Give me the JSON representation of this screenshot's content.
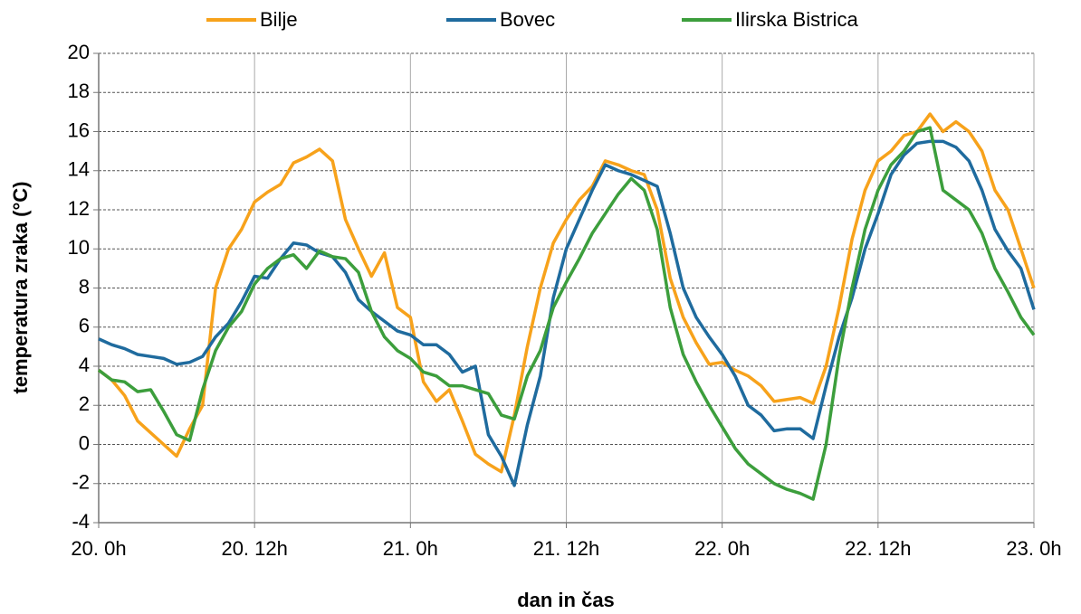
{
  "chart_data": {
    "type": "line",
    "x_label": "dan in čas",
    "y_label": "temperatura zraka (°C)",
    "x": [
      0,
      1,
      2,
      3,
      4,
      5,
      6,
      7,
      8,
      9,
      10,
      11,
      12,
      13,
      14,
      15,
      16,
      17,
      18,
      19,
      20,
      21,
      22,
      23,
      24,
      25,
      26,
      27,
      28,
      29,
      30,
      31,
      32,
      33,
      34,
      35,
      36,
      37,
      38,
      39,
      40,
      41,
      42,
      43,
      44,
      45,
      46,
      47,
      48,
      49,
      50,
      51,
      52,
      53,
      54,
      55,
      56,
      57,
      58,
      59,
      60,
      61,
      62,
      63,
      64,
      65,
      66,
      67,
      68,
      69,
      70,
      71,
      72
    ],
    "series": [
      {
        "name": "Bilje",
        "color": "#f7a21b",
        "values": [
          3.8,
          3.3,
          2.5,
          1.2,
          0.6,
          0.0,
          -0.6,
          0.8,
          2.0,
          8.0,
          10.0,
          11.0,
          12.4,
          12.9,
          13.3,
          14.4,
          14.7,
          15.1,
          14.5,
          11.5,
          10.0,
          8.6,
          9.8,
          7.0,
          6.5,
          3.2,
          2.2,
          2.8,
          1.2,
          -0.5,
          -1.0,
          -1.4,
          1.5,
          5.0,
          8.0,
          10.3,
          11.5,
          12.5,
          13.2,
          14.5,
          14.3,
          14.0,
          13.8,
          12.0,
          8.5,
          6.5,
          5.2,
          4.1,
          4.2,
          3.8,
          3.5,
          3.0,
          2.2,
          2.3,
          2.4,
          2.1,
          4.0,
          7.0,
          10.5,
          13.0,
          14.5,
          15.0,
          15.8,
          16.0,
          16.9,
          16.0,
          16.5,
          16.0,
          15.0,
          13.0,
          12.0,
          10.0,
          8.0
        ]
      },
      {
        "name": "Bovec",
        "color": "#1f6b9e",
        "values": [
          5.4,
          5.1,
          4.9,
          4.6,
          4.5,
          4.4,
          4.1,
          4.2,
          4.5,
          5.5,
          6.2,
          7.3,
          8.6,
          8.5,
          9.5,
          10.3,
          10.2,
          9.8,
          9.6,
          8.8,
          7.4,
          6.8,
          6.3,
          5.8,
          5.6,
          5.1,
          5.1,
          4.6,
          3.7,
          4.0,
          0.5,
          -0.6,
          -2.1,
          1.0,
          3.5,
          7.5,
          10.0,
          11.5,
          13.0,
          14.3,
          14.0,
          13.8,
          13.5,
          13.2,
          10.8,
          8.0,
          6.5,
          5.5,
          4.6,
          3.5,
          2.0,
          1.5,
          0.7,
          0.8,
          0.8,
          0.3,
          3.0,
          5.5,
          7.5,
          10.0,
          11.8,
          13.8,
          14.8,
          15.4,
          15.5,
          15.5,
          15.2,
          14.5,
          13.0,
          11.0,
          9.9,
          9.0,
          6.9
        ]
      },
      {
        "name": "Ilirska Bistrica",
        "color": "#3c9e3c",
        "values": [
          3.8,
          3.3,
          3.2,
          2.7,
          2.8,
          1.7,
          0.5,
          0.2,
          2.8,
          4.8,
          6.0,
          6.8,
          8.2,
          9.0,
          9.5,
          9.7,
          9.0,
          9.9,
          9.6,
          9.5,
          8.8,
          6.8,
          5.5,
          4.8,
          4.4,
          3.7,
          3.5,
          3.0,
          3.0,
          2.8,
          2.6,
          1.5,
          1.3,
          3.5,
          4.8,
          7.0,
          8.3,
          9.5,
          10.8,
          11.8,
          12.8,
          13.6,
          13.0,
          11.0,
          7.0,
          4.6,
          3.2,
          2.0,
          0.9,
          -0.2,
          -1.0,
          -1.5,
          -2.0,
          -2.3,
          -2.5,
          -2.8,
          0.0,
          4.5,
          8.0,
          11.0,
          13.0,
          14.3,
          15.0,
          16.0,
          16.2,
          13.0,
          12.5,
          12.0,
          10.8,
          9.0,
          7.8,
          6.5,
          5.6
        ]
      }
    ],
    "xlim": [
      0,
      72
    ],
    "xticks": [
      {
        "value": 0,
        "label": "20. 0h"
      },
      {
        "value": 12,
        "label": "20. 12h"
      },
      {
        "value": 24,
        "label": "21. 0h"
      },
      {
        "value": 36,
        "label": "21. 12h"
      },
      {
        "value": 48,
        "label": "22. 0h"
      },
      {
        "value": 60,
        "label": "22. 12h"
      },
      {
        "value": 72,
        "label": "23. 0h"
      }
    ],
    "ylim": [
      -4,
      20
    ],
    "yticks": [
      -4,
      -2,
      0,
      2,
      4,
      6,
      8,
      10,
      12,
      14,
      16,
      18,
      20
    ],
    "grid": true,
    "legend": "top"
  }
}
